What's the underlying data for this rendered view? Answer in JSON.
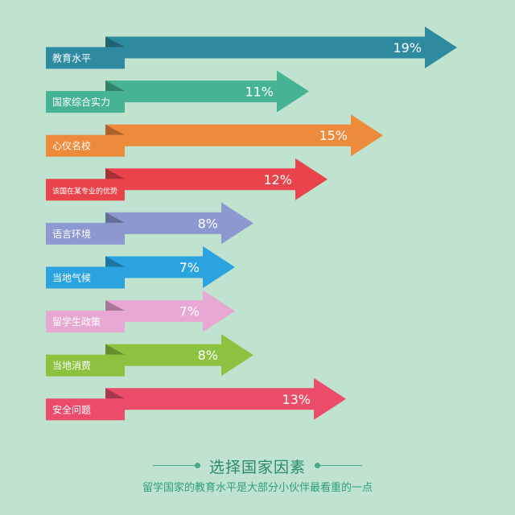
{
  "chart_data": {
    "type": "bar",
    "orientation": "horizontal",
    "categories": [
      "教育水平",
      "国家综合实力",
      "心仪名校",
      "该国在某专业的优势",
      "语言环境",
      "当地气候",
      "留学生政策",
      "当地消费",
      "安全问题"
    ],
    "values": [
      19,
      11,
      15,
      12,
      8,
      7,
      7,
      8,
      13
    ],
    "value_labels": [
      "19%",
      "11%",
      "15%",
      "12%",
      "8%",
      "7%",
      "7%",
      "8%",
      "13%"
    ],
    "colors": [
      "#2e8a9f",
      "#46b394",
      "#ee8a3c",
      "#e9444b",
      "#8d98d0",
      "#2aa3de",
      "#e7a8d3",
      "#8cc23f",
      "#ea4c6a"
    ],
    "title": "选择国家因素",
    "subtitle": "留学国家的教育水平是大部分小伙伴最看重的一点",
    "xlabel": "",
    "ylabel": ""
  }
}
